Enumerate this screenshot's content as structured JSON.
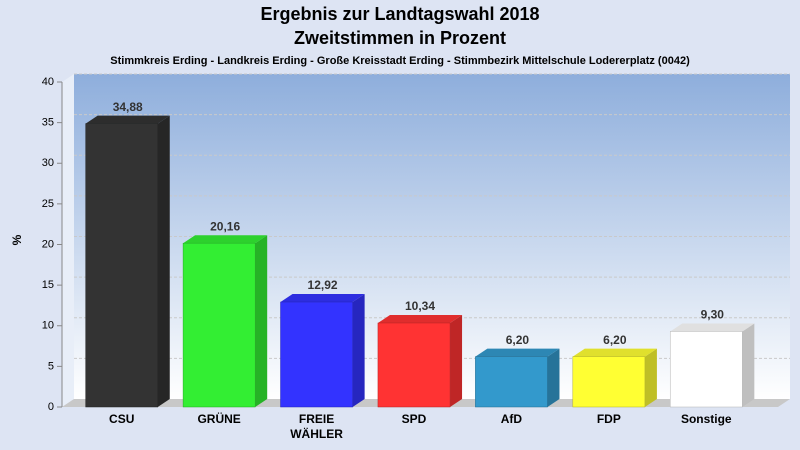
{
  "chart_data": {
    "type": "bar",
    "title": "Ergebnis zur Landtagswahl 2018",
    "subtitle": "Zweitstimmen in Prozent",
    "caption": "Stimmkreis Erding - Landkreis Erding - Große Kreisstadt Erding - Stimmbezirk Mittelschule Lodererplatz (0042)",
    "y_label": "%",
    "categories": [
      "CSU",
      "GRÜNE",
      "FREIE WÄHLER",
      "SPD",
      "AfD",
      "FDP",
      "Sonstige"
    ],
    "values": [
      34.88,
      20.16,
      12.92,
      10.34,
      6.2,
      6.2,
      9.3
    ],
    "value_labels": [
      "34,88",
      "20,16",
      "12,92",
      "10,34",
      "6,20",
      "6,20",
      "9,30"
    ],
    "colors": [
      "#333333",
      "#33ee33",
      "#3333ff",
      "#ff3333",
      "#3399cc",
      "#ffff33",
      "#ffffff"
    ],
    "ylim": [
      0,
      40
    ],
    "yticks": [
      0,
      5,
      10,
      15,
      20,
      25,
      30,
      35,
      40
    ],
    "grid": true
  }
}
